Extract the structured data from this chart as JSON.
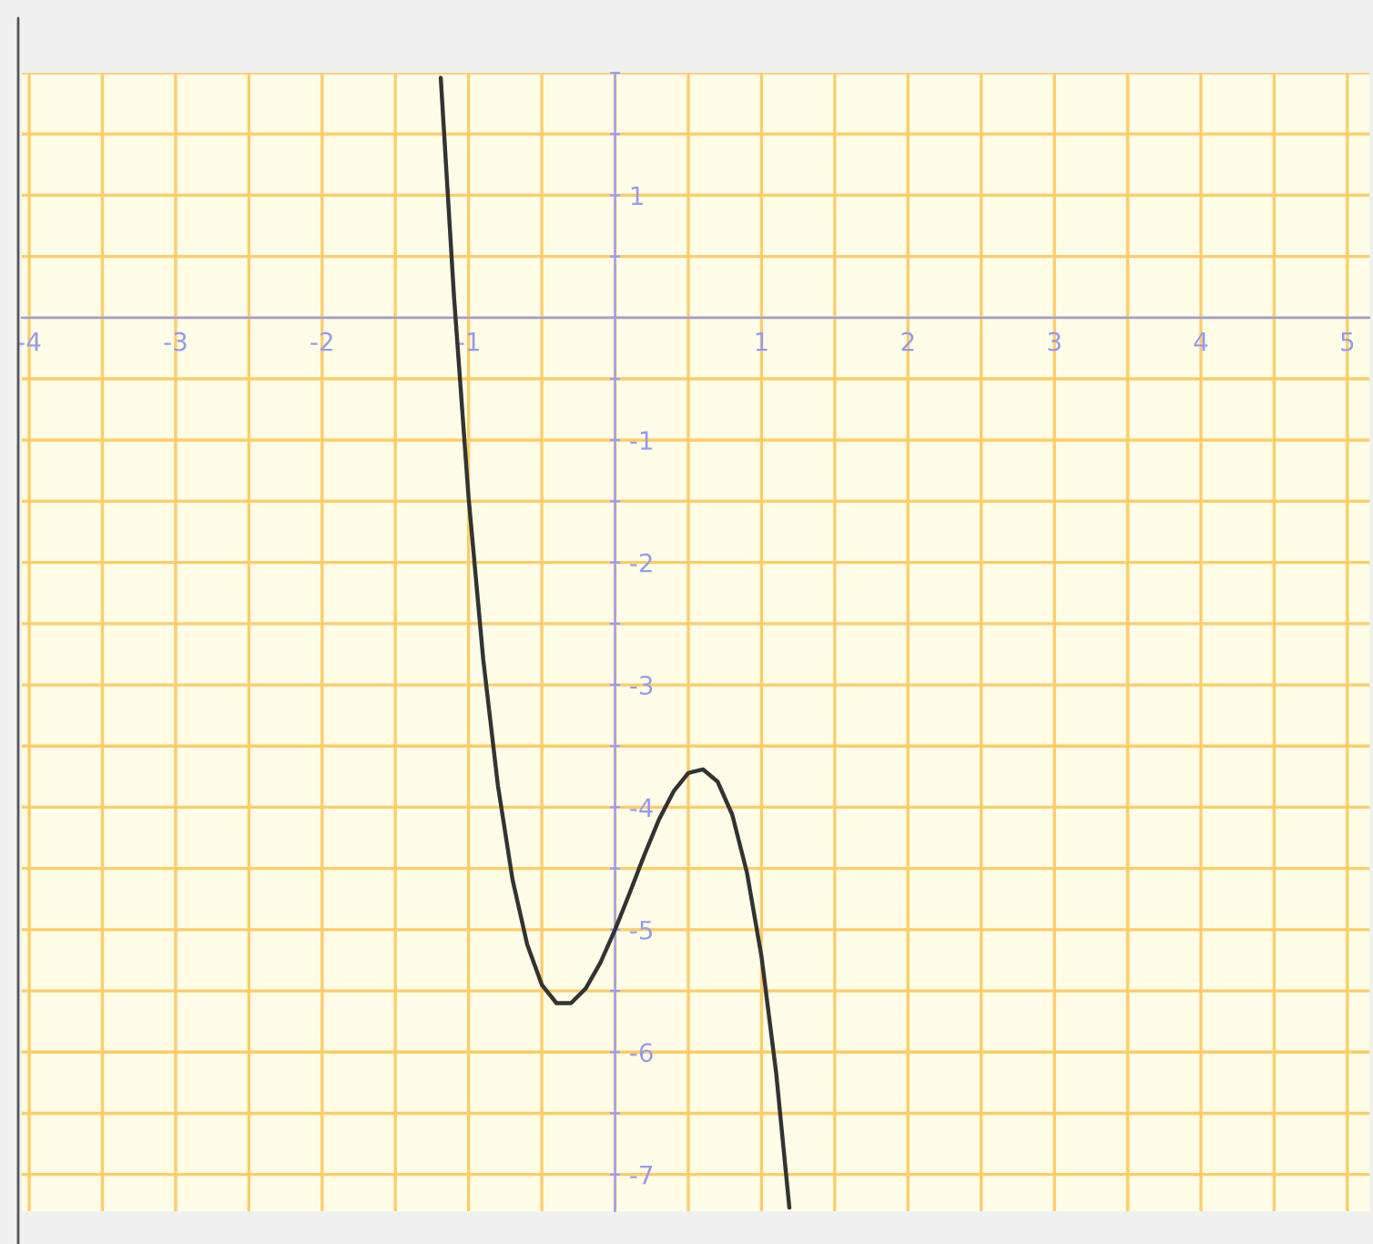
{
  "chart_data": {
    "type": "line",
    "x": [
      -1.19,
      -1.1,
      -1.0,
      -0.9,
      -0.8,
      -0.7,
      -0.6,
      -0.5,
      -0.4,
      -0.3,
      -0.2,
      -0.1,
      0,
      0.1,
      0.2,
      0.3,
      0.4,
      0.5,
      0.6,
      0.7,
      0.8,
      0.9,
      1.0,
      1.1,
      1.19
    ],
    "series": [
      {
        "color": "#333333",
        "values": [
          1.96,
          0.18,
          -1.47,
          -2.79,
          -3.82,
          -4.59,
          -5.12,
          -5.45,
          -5.6,
          -5.6,
          -5.48,
          -5.27,
          -5.0,
          -4.7,
          -4.39,
          -4.1,
          -3.87,
          -3.72,
          -3.69,
          -3.79,
          -4.06,
          -4.53,
          -5.22,
          -6.17,
          -7.27
        ]
      }
    ],
    "xlim": [
      -4.05,
      5.15
    ],
    "ylim": [
      -7.3,
      2.0
    ],
    "xticks": [
      -4,
      {
        "value": -3.5,
        "label": null
      },
      -3,
      {
        "value": -2.5,
        "label": null
      },
      -2,
      {
        "value": -1.5,
        "label": null
      },
      -1,
      {
        "value": -0.5,
        "label": null
      },
      {
        "value": 0,
        "label": null
      },
      {
        "value": 0.5,
        "label": null
      },
      1,
      {
        "value": 1.5,
        "label": null
      },
      2,
      {
        "value": 2.5,
        "label": null
      },
      3,
      {
        "value": 3.5,
        "label": null
      },
      4,
      {
        "value": 4.5,
        "label": null
      },
      5
    ],
    "yticks": [
      -7,
      {
        "value": -6.5,
        "label": null
      },
      -6,
      {
        "value": -5.5,
        "label": null
      },
      -5,
      {
        "value": -4.5,
        "label": null
      },
      -4,
      {
        "value": -3.5,
        "label": null
      },
      -3,
      {
        "value": -2.5,
        "label": null
      },
      -2,
      {
        "value": -1.5,
        "label": null
      },
      -1,
      {
        "value": -0.5,
        "label": null
      },
      {
        "value": 0,
        "label": null
      },
      {
        "value": 0.5,
        "label": null
      },
      1,
      {
        "value": 1.5,
        "label": null
      },
      {
        "value": 2,
        "label": null
      }
    ],
    "grid": true,
    "marker": "none",
    "line_style": "solid"
  }
}
